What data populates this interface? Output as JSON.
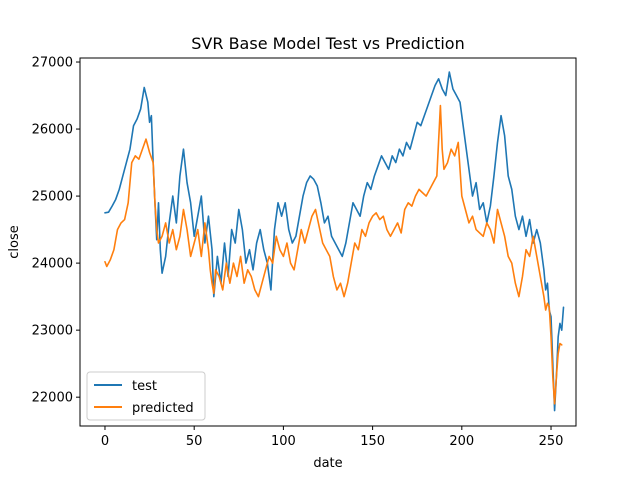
{
  "chart_data": {
    "type": "line",
    "title": "SVR Base Model Test vs Prediction",
    "xlabel": "date",
    "ylabel": "close",
    "xlim": [
      -14,
      264
    ],
    "ylim": [
      21570,
      27060
    ],
    "xticks": [
      0,
      50,
      100,
      150,
      200,
      250
    ],
    "yticks": [
      22000,
      23000,
      24000,
      25000,
      26000,
      27000
    ],
    "legend_position": "lower-left",
    "grid": false,
    "series": [
      {
        "name": "test",
        "color": "#1f77b4",
        "points": [
          [
            0,
            24750
          ],
          [
            2,
            24760
          ],
          [
            4,
            24850
          ],
          [
            6,
            24950
          ],
          [
            8,
            25100
          ],
          [
            10,
            25300
          ],
          [
            12,
            25500
          ],
          [
            14,
            25700
          ],
          [
            16,
            26050
          ],
          [
            18,
            26150
          ],
          [
            20,
            26300
          ],
          [
            22,
            26620
          ],
          [
            24,
            26400
          ],
          [
            25,
            26100
          ],
          [
            26,
            26200
          ],
          [
            27,
            25500
          ],
          [
            28,
            24900
          ],
          [
            29,
            24350
          ],
          [
            30,
            24900
          ],
          [
            31,
            24200
          ],
          [
            32,
            23850
          ],
          [
            34,
            24100
          ],
          [
            36,
            24600
          ],
          [
            38,
            25000
          ],
          [
            40,
            24600
          ],
          [
            42,
            25300
          ],
          [
            44,
            25700
          ],
          [
            46,
            25200
          ],
          [
            48,
            24900
          ],
          [
            50,
            24400
          ],
          [
            52,
            24700
          ],
          [
            54,
            25000
          ],
          [
            56,
            24300
          ],
          [
            58,
            24700
          ],
          [
            60,
            24200
          ],
          [
            61,
            23500
          ],
          [
            63,
            24100
          ],
          [
            65,
            23700
          ],
          [
            67,
            24300
          ],
          [
            69,
            23800
          ],
          [
            71,
            24500
          ],
          [
            73,
            24300
          ],
          [
            75,
            24800
          ],
          [
            77,
            24500
          ],
          [
            79,
            24000
          ],
          [
            81,
            24200
          ],
          [
            83,
            23900
          ],
          [
            85,
            24300
          ],
          [
            87,
            24500
          ],
          [
            89,
            24200
          ],
          [
            91,
            24000
          ],
          [
            93,
            23600
          ],
          [
            95,
            24500
          ],
          [
            97,
            24900
          ],
          [
            99,
            24700
          ],
          [
            101,
            24900
          ],
          [
            103,
            24500
          ],
          [
            105,
            24300
          ],
          [
            107,
            24400
          ],
          [
            109,
            24700
          ],
          [
            111,
            25000
          ],
          [
            113,
            25200
          ],
          [
            115,
            25300
          ],
          [
            117,
            25250
          ],
          [
            119,
            25150
          ],
          [
            121,
            24900
          ],
          [
            123,
            24600
          ],
          [
            125,
            24700
          ],
          [
            127,
            24400
          ],
          [
            129,
            24300
          ],
          [
            131,
            24200
          ],
          [
            133,
            24100
          ],
          [
            135,
            24300
          ],
          [
            137,
            24600
          ],
          [
            139,
            24900
          ],
          [
            141,
            24800
          ],
          [
            143,
            24700
          ],
          [
            145,
            25000
          ],
          [
            147,
            25200
          ],
          [
            149,
            25100
          ],
          [
            151,
            25300
          ],
          [
            153,
            25450
          ],
          [
            155,
            25600
          ],
          [
            157,
            25500
          ],
          [
            159,
            25400
          ],
          [
            161,
            25600
          ],
          [
            163,
            25500
          ],
          [
            165,
            25700
          ],
          [
            167,
            25600
          ],
          [
            169,
            25800
          ],
          [
            171,
            25700
          ],
          [
            173,
            25900
          ],
          [
            175,
            26100
          ],
          [
            177,
            26050
          ],
          [
            179,
            26200
          ],
          [
            181,
            26350
          ],
          [
            183,
            26500
          ],
          [
            185,
            26650
          ],
          [
            187,
            26750
          ],
          [
            189,
            26600
          ],
          [
            191,
            26500
          ],
          [
            193,
            26850
          ],
          [
            195,
            26600
          ],
          [
            197,
            26500
          ],
          [
            199,
            26400
          ],
          [
            200,
            26200
          ],
          [
            202,
            25800
          ],
          [
            204,
            25400
          ],
          [
            206,
            25000
          ],
          [
            208,
            25200
          ],
          [
            210,
            24800
          ],
          [
            212,
            24900
          ],
          [
            214,
            24600
          ],
          [
            216,
            24850
          ],
          [
            218,
            25300
          ],
          [
            220,
            25800
          ],
          [
            222,
            26200
          ],
          [
            224,
            25900
          ],
          [
            226,
            25300
          ],
          [
            228,
            25100
          ],
          [
            230,
            24700
          ],
          [
            232,
            24500
          ],
          [
            234,
            24700
          ],
          [
            236,
            24400
          ],
          [
            238,
            24650
          ],
          [
            240,
            24300
          ],
          [
            242,
            24500
          ],
          [
            244,
            24300
          ],
          [
            246,
            23900
          ],
          [
            247,
            23600
          ],
          [
            248,
            23700
          ],
          [
            249,
            23300
          ],
          [
            250,
            23200
          ],
          [
            251,
            22500
          ],
          [
            252,
            21800
          ],
          [
            253,
            22300
          ],
          [
            254,
            22900
          ],
          [
            255,
            23100
          ],
          [
            256,
            23000
          ],
          [
            257,
            23340
          ]
        ]
      },
      {
        "name": "predicted",
        "color": "#ff7f0e",
        "points": [
          [
            0,
            24020
          ],
          [
            1,
            23950
          ],
          [
            3,
            24050
          ],
          [
            5,
            24200
          ],
          [
            7,
            24500
          ],
          [
            9,
            24600
          ],
          [
            11,
            24650
          ],
          [
            13,
            24900
          ],
          [
            15,
            25500
          ],
          [
            17,
            25600
          ],
          [
            19,
            25550
          ],
          [
            21,
            25700
          ],
          [
            23,
            25850
          ],
          [
            25,
            25650
          ],
          [
            27,
            25500
          ],
          [
            28,
            24900
          ],
          [
            29,
            24500
          ],
          [
            30,
            24300
          ],
          [
            32,
            24400
          ],
          [
            34,
            24600
          ],
          [
            36,
            24300
          ],
          [
            38,
            24500
          ],
          [
            40,
            24200
          ],
          [
            42,
            24400
          ],
          [
            44,
            24800
          ],
          [
            46,
            24500
          ],
          [
            48,
            24100
          ],
          [
            50,
            24300
          ],
          [
            52,
            24500
          ],
          [
            54,
            24100
          ],
          [
            56,
            24600
          ],
          [
            58,
            24200
          ],
          [
            59,
            23900
          ],
          [
            60,
            23700
          ],
          [
            61,
            23550
          ],
          [
            62,
            23900
          ],
          [
            64,
            23800
          ],
          [
            66,
            23600
          ],
          [
            68,
            24000
          ],
          [
            70,
            23700
          ],
          [
            72,
            24000
          ],
          [
            74,
            23800
          ],
          [
            76,
            24100
          ],
          [
            78,
            23700
          ],
          [
            80,
            23900
          ],
          [
            82,
            23800
          ],
          [
            84,
            23600
          ],
          [
            86,
            23500
          ],
          [
            88,
            23700
          ],
          [
            90,
            23900
          ],
          [
            92,
            24100
          ],
          [
            94,
            24000
          ],
          [
            96,
            24400
          ],
          [
            98,
            24200
          ],
          [
            100,
            24100
          ],
          [
            102,
            24300
          ],
          [
            104,
            24000
          ],
          [
            106,
            23900
          ],
          [
            108,
            24200
          ],
          [
            110,
            24500
          ],
          [
            112,
            24300
          ],
          [
            114,
            24500
          ],
          [
            116,
            24700
          ],
          [
            118,
            24800
          ],
          [
            120,
            24550
          ],
          [
            122,
            24300
          ],
          [
            124,
            24200
          ],
          [
            126,
            24100
          ],
          [
            128,
            23800
          ],
          [
            130,
            23600
          ],
          [
            132,
            23700
          ],
          [
            134,
            23500
          ],
          [
            136,
            23700
          ],
          [
            138,
            24000
          ],
          [
            140,
            24300
          ],
          [
            142,
            24200
          ],
          [
            144,
            24500
          ],
          [
            146,
            24400
          ],
          [
            148,
            24600
          ],
          [
            150,
            24700
          ],
          [
            152,
            24750
          ],
          [
            154,
            24650
          ],
          [
            156,
            24700
          ],
          [
            158,
            24500
          ],
          [
            160,
            24400
          ],
          [
            162,
            24500
          ],
          [
            164,
            24600
          ],
          [
            166,
            24450
          ],
          [
            168,
            24800
          ],
          [
            170,
            24900
          ],
          [
            172,
            24850
          ],
          [
            174,
            25000
          ],
          [
            176,
            25100
          ],
          [
            178,
            25050
          ],
          [
            180,
            25000
          ],
          [
            182,
            25100
          ],
          [
            184,
            25200
          ],
          [
            186,
            25300
          ],
          [
            188,
            26350
          ],
          [
            189,
            25700
          ],
          [
            190,
            25400
          ],
          [
            192,
            25500
          ],
          [
            194,
            25700
          ],
          [
            196,
            25600
          ],
          [
            198,
            25800
          ],
          [
            199,
            25400
          ],
          [
            200,
            25000
          ],
          [
            202,
            24800
          ],
          [
            204,
            24600
          ],
          [
            206,
            24700
          ],
          [
            208,
            24500
          ],
          [
            210,
            24450
          ],
          [
            212,
            24400
          ],
          [
            214,
            24600
          ],
          [
            216,
            24500
          ],
          [
            218,
            24300
          ],
          [
            220,
            24800
          ],
          [
            222,
            24600
          ],
          [
            224,
            24400
          ],
          [
            226,
            24100
          ],
          [
            228,
            24000
          ],
          [
            230,
            23700
          ],
          [
            232,
            23500
          ],
          [
            234,
            23800
          ],
          [
            236,
            24200
          ],
          [
            238,
            24100
          ],
          [
            240,
            24400
          ],
          [
            242,
            24100
          ],
          [
            244,
            23800
          ],
          [
            246,
            23500
          ],
          [
            247,
            23300
          ],
          [
            248,
            23400
          ],
          [
            249,
            23350
          ],
          [
            250,
            22900
          ],
          [
            251,
            22300
          ],
          [
            252,
            21900
          ],
          [
            253,
            22300
          ],
          [
            254,
            22650
          ],
          [
            255,
            22800
          ],
          [
            256,
            22780
          ]
        ]
      }
    ]
  }
}
